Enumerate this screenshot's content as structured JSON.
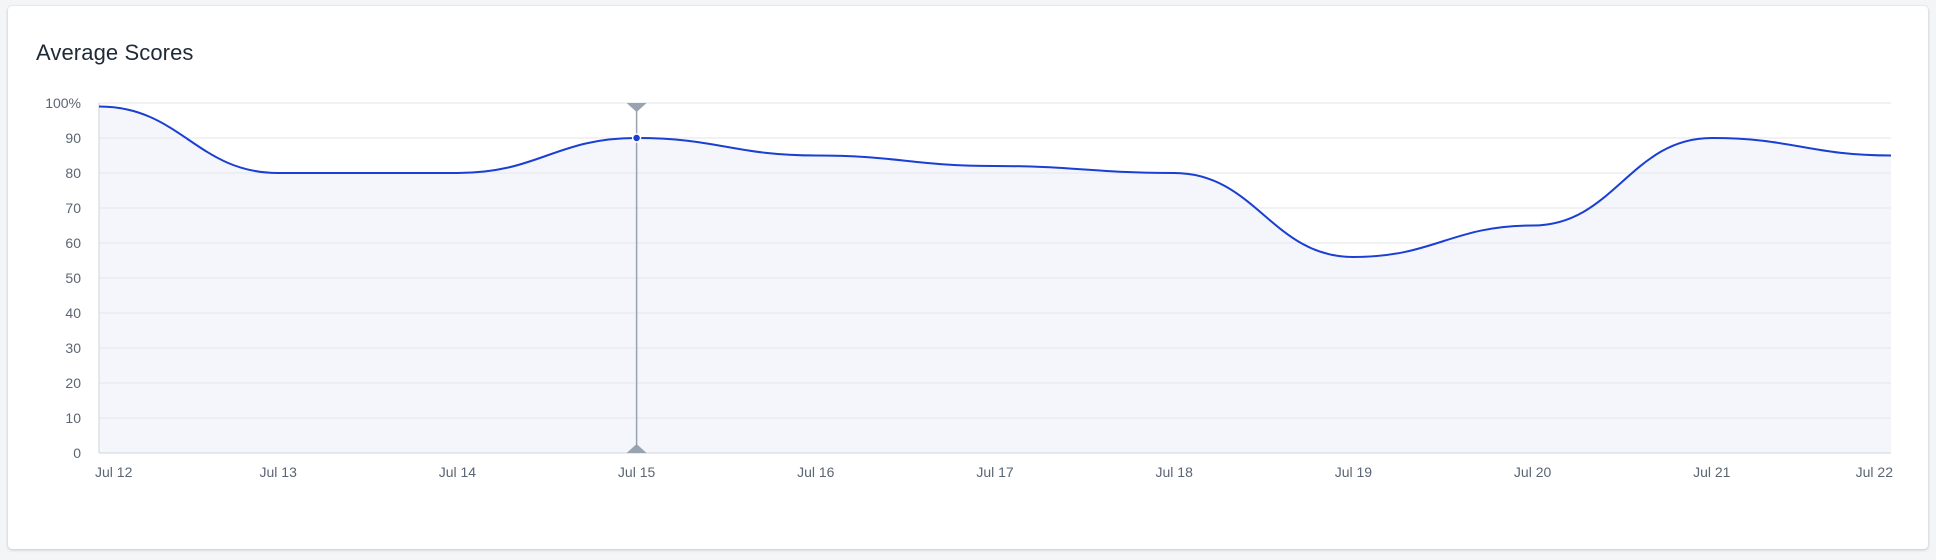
{
  "card": {
    "title": "Average Scores"
  },
  "chart_data": {
    "type": "area",
    "title": "Average Scores",
    "xlabel": "",
    "ylabel": "",
    "categories": [
      "Jul 12",
      "Jul 13",
      "Jul 14",
      "Jul 15",
      "Jul 16",
      "Jul 17",
      "Jul 18",
      "Jul 19",
      "Jul 20",
      "Jul 21",
      "Jul 22"
    ],
    "series": [
      {
        "values": [
          99,
          80,
          80,
          90,
          85,
          82,
          80,
          56,
          65,
          90,
          85
        ]
      }
    ],
    "y_ticks": [
      "0",
      "10",
      "20",
      "30",
      "40",
      "50",
      "60",
      "70",
      "80",
      "90",
      "100%"
    ],
    "ylim": [
      0,
      100
    ],
    "grid": true,
    "legend": "none",
    "colors": {
      "line": "#1a3fd1",
      "area": "#f4f6fc",
      "grid": "#e3e6ea",
      "axis": "#cfd4da",
      "cursor": "#97a3ae"
    },
    "highlight": {
      "category": "Jul 15",
      "value": 90
    }
  }
}
